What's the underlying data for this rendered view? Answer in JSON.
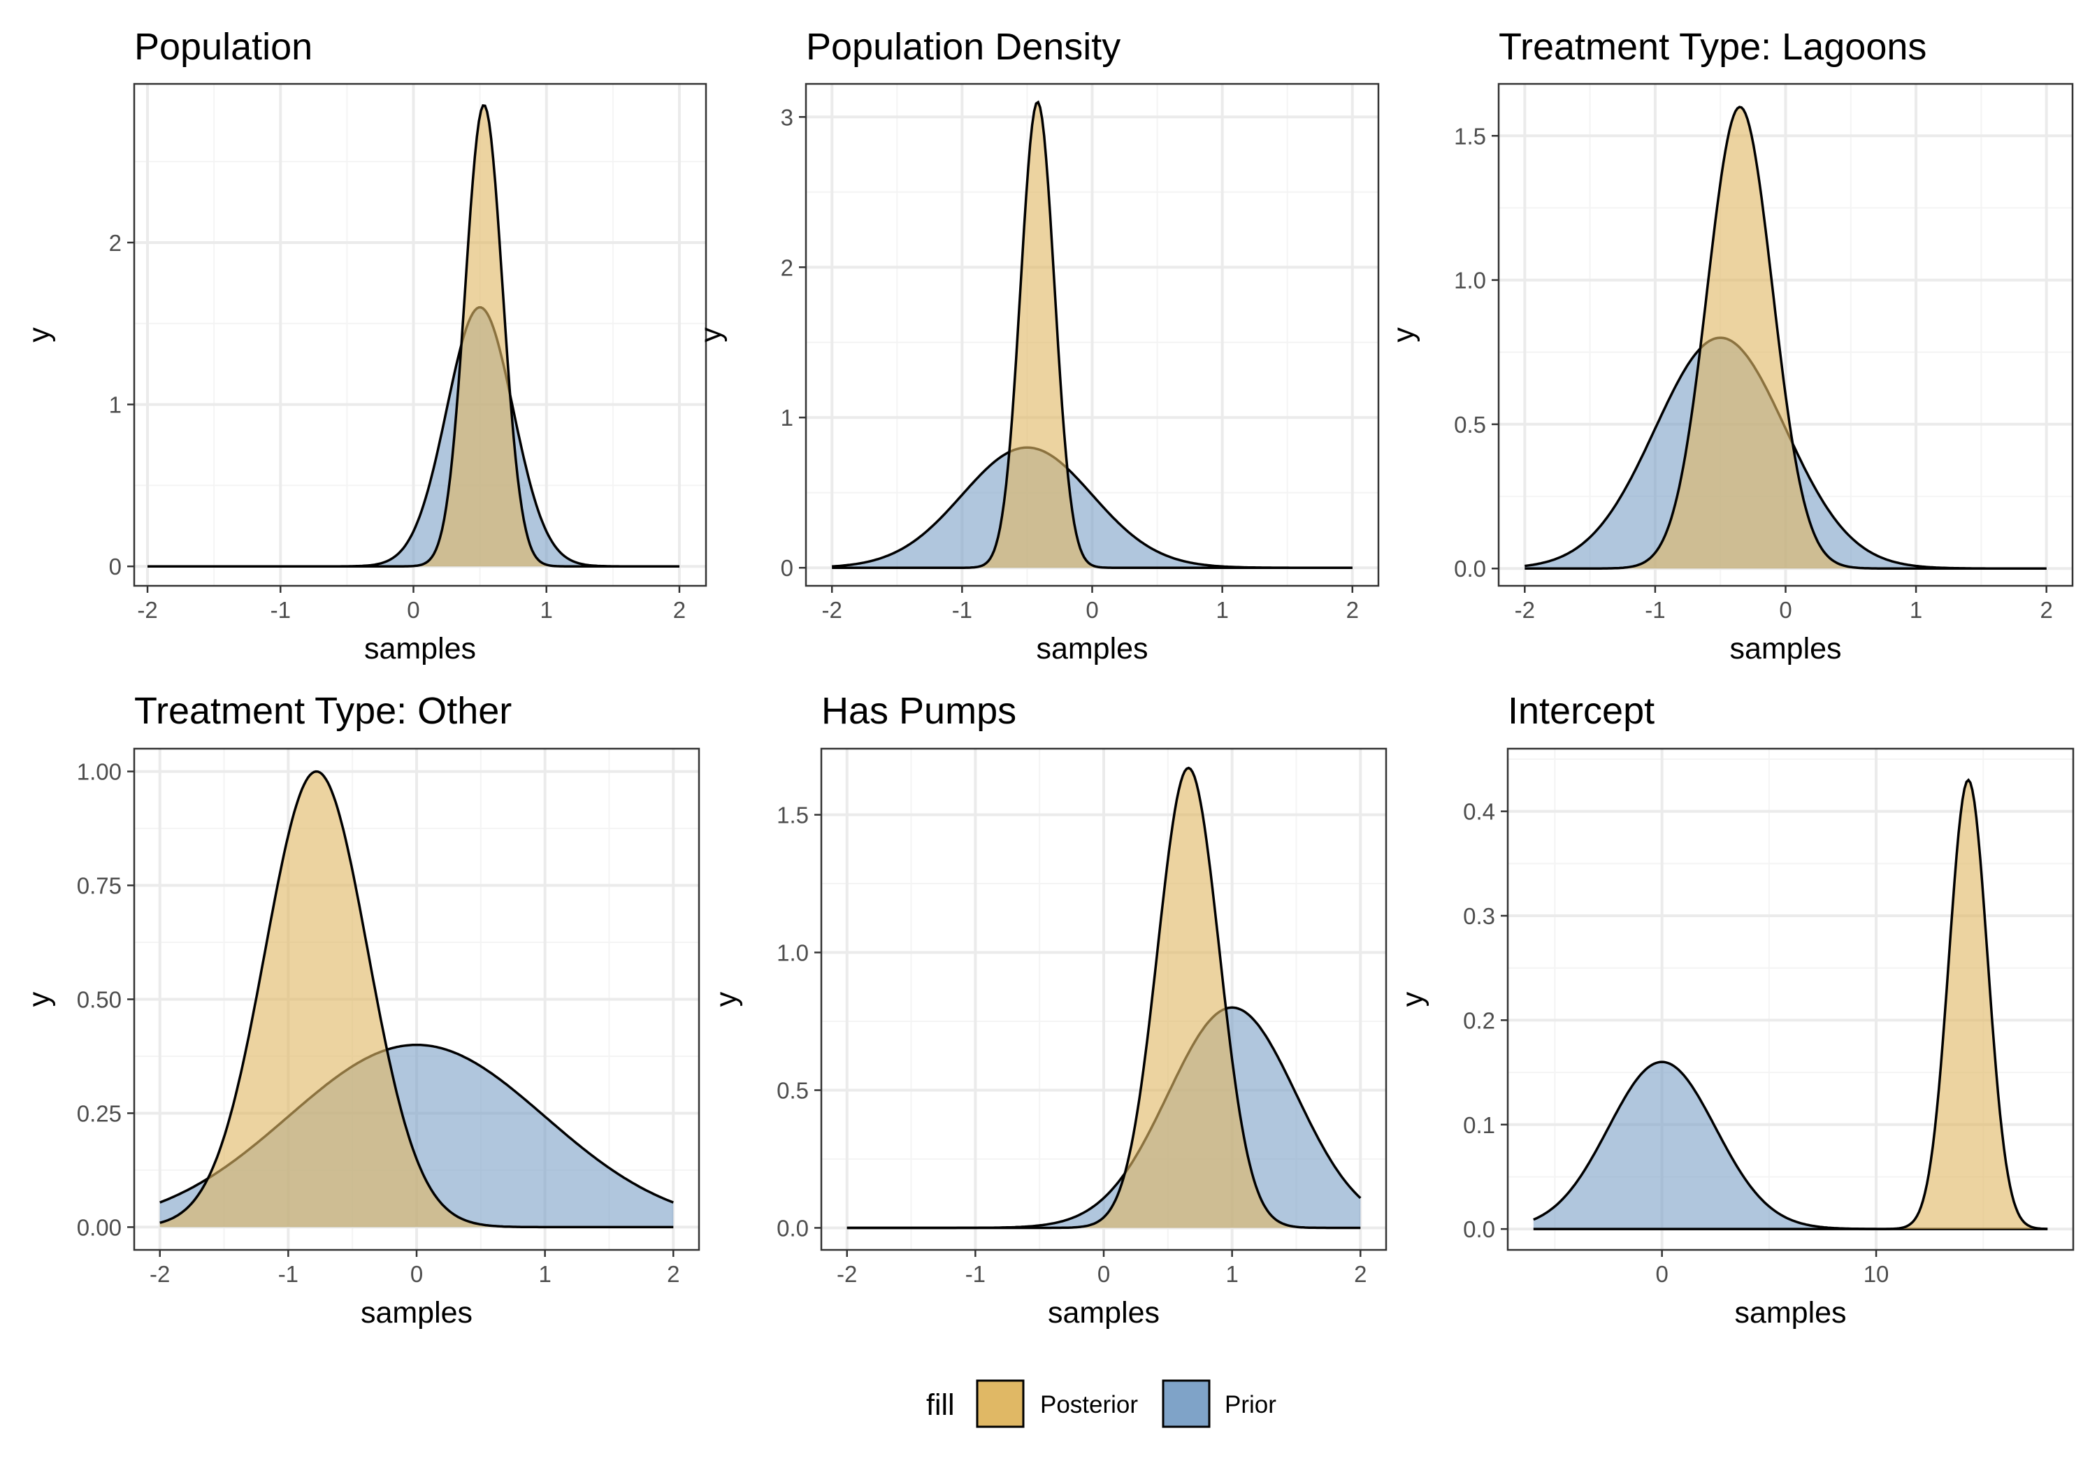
{
  "legend": {
    "title": "fill",
    "items": [
      {
        "label": "Posterior",
        "color": "#e0b865"
      },
      {
        "label": "Prior",
        "color": "#7fa3c8"
      }
    ]
  },
  "colors": {
    "posterior": "#e0b865",
    "prior": "#7fa3c8",
    "outline": "#000000",
    "panel_border": "#333333",
    "grid_major": "#ebebeb",
    "grid_minor": "#f4f4f4"
  },
  "chart_data": [
    {
      "type": "area",
      "title": "Population",
      "xlabel": "samples",
      "ylabel": "y",
      "xlim": [
        -2.1,
        2.2
      ],
      "ylim": [
        -0.12,
        2.98
      ],
      "xticks": [
        -2,
        -1,
        0,
        1,
        2
      ],
      "xticklabels": [
        "-2",
        "-1",
        "0",
        "1",
        "2"
      ],
      "yticks": [
        0,
        1,
        2
      ],
      "yticklabels": [
        "0",
        "1",
        "2"
      ],
      "grid": true,
      "series": [
        {
          "name": "Prior",
          "dist": "normal",
          "mean": 0.5,
          "sd": 0.25,
          "peak": 1.6,
          "x_range": [
            -2,
            2
          ]
        },
        {
          "name": "Posterior",
          "dist": "normal",
          "mean": 0.53,
          "sd": 0.14,
          "peak": 2.85,
          "x_range": [
            -2,
            2
          ]
        }
      ]
    },
    {
      "type": "area",
      "title": "Population Density",
      "xlabel": "samples",
      "ylabel": "y",
      "xlim": [
        -2.2,
        2.2
      ],
      "ylim": [
        -0.12,
        3.22
      ],
      "xticks": [
        -2,
        -1,
        0,
        1,
        2
      ],
      "xticklabels": [
        "-2",
        "-1",
        "0",
        "1",
        "2"
      ],
      "yticks": [
        0,
        1,
        2,
        3
      ],
      "yticklabels": [
        "0",
        "1",
        "2",
        "3"
      ],
      "grid": true,
      "series": [
        {
          "name": "Prior",
          "dist": "normal",
          "mean": -0.5,
          "sd": 0.5,
          "peak": 0.8,
          "x_range": [
            -2,
            2
          ]
        },
        {
          "name": "Posterior",
          "dist": "normal",
          "mean": -0.42,
          "sd": 0.13,
          "peak": 3.1,
          "x_range": [
            -2,
            2
          ]
        }
      ]
    },
    {
      "type": "area",
      "title": "Treatment Type: Lagoons",
      "xlabel": "samples",
      "ylabel": "y",
      "xlim": [
        -2.2,
        2.2
      ],
      "ylim": [
        -0.06,
        1.68
      ],
      "xticks": [
        -2,
        -1,
        0,
        1,
        2
      ],
      "xticklabels": [
        "-2",
        "-1",
        "0",
        "1",
        "2"
      ],
      "yticks": [
        0,
        0.5,
        1,
        1.5
      ],
      "yticklabels": [
        "0.0",
        "0.5",
        "1.0",
        "1.5"
      ],
      "grid": true,
      "series": [
        {
          "name": "Prior",
          "dist": "normal",
          "mean": -0.5,
          "sd": 0.5,
          "peak": 0.8,
          "x_range": [
            -2,
            2
          ]
        },
        {
          "name": "Posterior",
          "dist": "normal",
          "mean": -0.35,
          "sd": 0.25,
          "peak": 1.6,
          "x_range": [
            -2,
            2
          ]
        }
      ]
    },
    {
      "type": "area",
      "title": "Treatment Type: Other",
      "xlabel": "samples",
      "ylabel": "y",
      "xlim": [
        -2.2,
        2.2
      ],
      "ylim": [
        -0.05,
        1.05
      ],
      "xticks": [
        -2,
        -1,
        0,
        1,
        2
      ],
      "xticklabels": [
        "-2",
        "-1",
        "0",
        "1",
        "2"
      ],
      "yticks": [
        0,
        0.25,
        0.5,
        0.75,
        1
      ],
      "yticklabels": [
        "0.00",
        "0.25",
        "0.50",
        "0.75",
        "1.00"
      ],
      "grid": true,
      "series": [
        {
          "name": "Prior",
          "dist": "normal",
          "mean": 0,
          "sd": 1,
          "peak": 0.4,
          "x_range": [
            -2,
            2
          ]
        },
        {
          "name": "Posterior",
          "dist": "normal",
          "mean": -0.78,
          "sd": 0.4,
          "peak": 1.0,
          "x_range": [
            -2,
            2
          ]
        }
      ]
    },
    {
      "type": "area",
      "title": "Has Pumps",
      "xlabel": "samples",
      "ylabel": "y",
      "xlim": [
        -2.2,
        2.2
      ],
      "ylim": [
        -0.08,
        1.74
      ],
      "xticks": [
        -2,
        -1,
        0,
        1,
        2
      ],
      "xticklabels": [
        "-2",
        "-1",
        "0",
        "1",
        "2"
      ],
      "yticks": [
        0,
        0.5,
        1,
        1.5
      ],
      "yticklabels": [
        "0.0",
        "0.5",
        "1.0",
        "1.5"
      ],
      "grid": true,
      "series": [
        {
          "name": "Prior",
          "dist": "normal",
          "mean": 1,
          "sd": 0.5,
          "peak": 0.8,
          "x_range": [
            -2,
            2
          ]
        },
        {
          "name": "Posterior",
          "dist": "normal",
          "mean": 0.66,
          "sd": 0.24,
          "peak": 1.67,
          "x_range": [
            -2,
            2
          ]
        }
      ]
    },
    {
      "type": "area",
      "title": "Intercept",
      "xlabel": "samples",
      "ylabel": "y",
      "xlim": [
        -7.2,
        19.2
      ],
      "ylim": [
        -0.02,
        0.46
      ],
      "xticks": [
        0,
        10
      ],
      "xticklabels": [
        "0",
        "10"
      ],
      "yticks": [
        0,
        0.1,
        0.2,
        0.3,
        0.4
      ],
      "yticklabels": [
        "0.0",
        "0.1",
        "0.2",
        "0.3",
        "0.4"
      ],
      "grid": true,
      "series": [
        {
          "name": "Prior",
          "dist": "normal",
          "mean": 0,
          "sd": 2.5,
          "peak": 0.16,
          "x_range": [
            -6,
            18
          ]
        },
        {
          "name": "Posterior",
          "dist": "normal",
          "mean": 14.3,
          "sd": 0.9,
          "peak": 0.43,
          "x_range": [
            -6,
            18
          ]
        }
      ]
    }
  ]
}
